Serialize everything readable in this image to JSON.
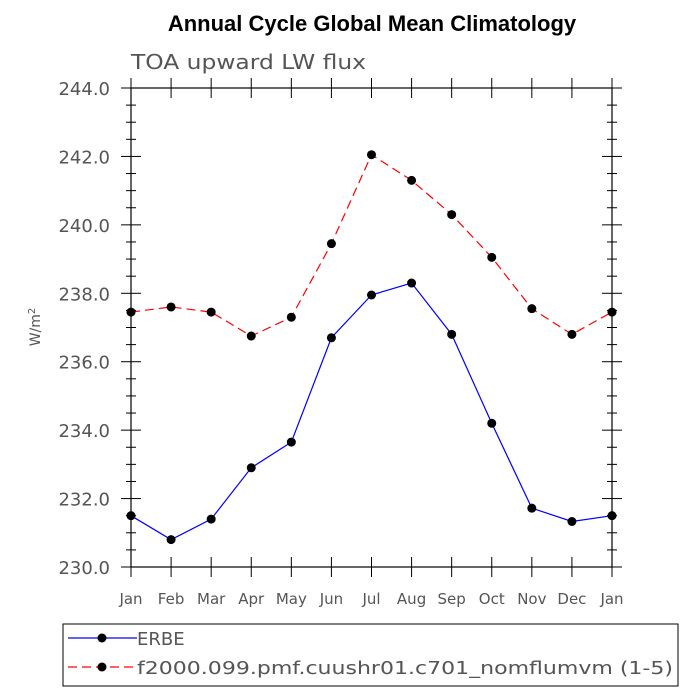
{
  "chart_data": {
    "type": "line",
    "title": "Annual Cycle Global Mean Climatology",
    "subtitle": "TOA upward LW flux",
    "ylabel_main": "W/m",
    "ylabel_sup": "2",
    "xlabel": "",
    "categories": [
      "Jan",
      "Feb",
      "Mar",
      "Apr",
      "May",
      "Jun",
      "Jul",
      "Aug",
      "Sep",
      "Oct",
      "Nov",
      "Dec",
      "Jan"
    ],
    "ylim": [
      230.0,
      244.0
    ],
    "yticks": [
      230.0,
      232.0,
      234.0,
      236.0,
      238.0,
      240.0,
      242.0,
      244.0
    ],
    "ytick_labels": [
      "230.0",
      "232.0",
      "234.0",
      "236.0",
      "238.0",
      "240.0",
      "242.0",
      "244.0"
    ],
    "grid": false,
    "legend_position": "bottom",
    "series": [
      {
        "name": "ERBE",
        "color": "#0000ff",
        "dash": "solid",
        "marker_color": "#000000",
        "values": [
          231.5,
          230.8,
          231.4,
          232.9,
          233.65,
          236.7,
          237.95,
          238.3,
          236.8,
          234.2,
          231.72,
          231.33,
          231.5
        ]
      },
      {
        "name": "f2000.099.pmf.cuushr01.c701_nomflumvm (1-5)",
        "color": "#ff0000",
        "dash": "dashed",
        "marker_color": "#000000",
        "values": [
          237.45,
          237.6,
          237.45,
          236.75,
          237.3,
          239.45,
          242.05,
          241.3,
          240.3,
          239.05,
          237.55,
          236.8,
          237.45
        ]
      }
    ]
  }
}
